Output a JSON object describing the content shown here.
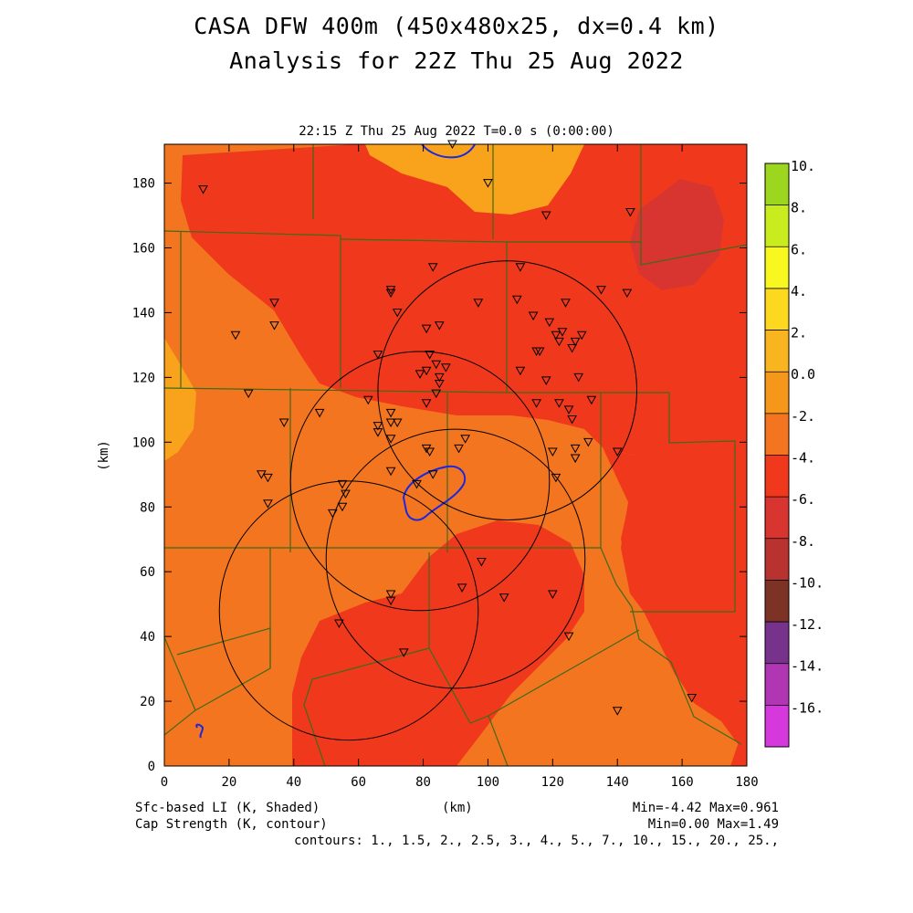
{
  "title_line1": "CASA DFW 400m (450x480x25, dx=0.4 km)",
  "title_line2": "Analysis for 22Z Thu 25 Aug 2022",
  "plot_subtitle": "22:15 Z Thu 25 Aug 2022    T=0.0 s (0:00:00)",
  "footer": {
    "field1": "Sfc-based LI (K, Shaded)",
    "field2": "Cap Strength (K, contour)",
    "xunits": "(km)",
    "minmax1": "Min=-4.42 Max=0.961",
    "minmax2": "Min=0.00 Max=1.49",
    "contours": "contours: 1., 1.5, 2., 2.5, 3., 4., 5., 7., 10., 15., 20., 25.,"
  },
  "chart_data": {
    "type": "heatmap",
    "xlabel": "(km)",
    "ylabel": "(km)",
    "xlim": [
      0,
      180
    ],
    "ylim": [
      0,
      192
    ],
    "xticks": [
      "0",
      "20",
      "40",
      "60",
      "80",
      "100",
      "120",
      "140",
      "160",
      "180"
    ],
    "yticks": [
      "0",
      "20",
      "40",
      "60",
      "80",
      "100",
      "120",
      "140",
      "160",
      "180"
    ],
    "colorbar": {
      "labels": [
        "10.",
        "8.",
        "6.",
        "4.",
        "2.",
        "0.0",
        "-2.",
        "-4.",
        "-6.",
        "-8.",
        "-10.",
        "-12.",
        "-14.",
        "-16."
      ],
      "colors": [
        "#9cd61e",
        "#c8ec1e",
        "#f8f820",
        "#fcd91e",
        "#f9b520",
        "#f5971a",
        "#f4751f",
        "#f0391c",
        "#d93530",
        "#b8322f",
        "#7d3226",
        "#77338c",
        "#b036b4",
        "#d538dc"
      ]
    },
    "radar_rings": [
      {
        "cx": 57,
        "cy": 48,
        "r": 40
      },
      {
        "cx": 79,
        "cy": 88,
        "r": 40
      },
      {
        "cx": 90,
        "cy": 64,
        "r": 40
      },
      {
        "cx": 106,
        "cy": 116,
        "r": 40
      }
    ],
    "stations": [
      [
        89,
        192
      ],
      [
        100,
        180
      ],
      [
        12,
        178
      ],
      [
        118,
        170
      ],
      [
        144,
        171
      ],
      [
        83,
        154
      ],
      [
        110,
        154
      ],
      [
        34,
        143
      ],
      [
        70,
        147
      ],
      [
        70,
        146
      ],
      [
        97,
        143
      ],
      [
        109,
        144
      ],
      [
        124,
        143
      ],
      [
        135,
        147
      ],
      [
        143,
        146
      ],
      [
        22,
        133
      ],
      [
        34,
        136
      ],
      [
        72,
        140
      ],
      [
        81,
        135
      ],
      [
        85,
        136
      ],
      [
        114,
        139
      ],
      [
        119,
        137
      ],
      [
        121,
        133
      ],
      [
        122,
        131
      ],
      [
        123,
        134
      ],
      [
        127,
        131
      ],
      [
        129,
        133
      ],
      [
        115,
        128
      ],
      [
        116,
        128
      ],
      [
        126,
        129
      ],
      [
        66,
        127
      ],
      [
        82,
        127
      ],
      [
        84,
        124
      ],
      [
        87,
        123
      ],
      [
        79,
        121
      ],
      [
        81,
        122
      ],
      [
        85,
        120
      ],
      [
        85,
        118
      ],
      [
        110,
        122
      ],
      [
        118,
        119
      ],
      [
        128,
        120
      ],
      [
        26,
        115
      ],
      [
        63,
        113
      ],
      [
        81,
        112
      ],
      [
        84,
        115
      ],
      [
        115,
        112
      ],
      [
        122,
        112
      ],
      [
        125,
        110
      ],
      [
        126,
        107
      ],
      [
        132,
        113
      ],
      [
        48,
        109
      ],
      [
        70,
        109
      ],
      [
        37,
        106
      ],
      [
        66,
        105
      ],
      [
        70,
        106
      ],
      [
        72,
        106
      ],
      [
        66,
        103
      ],
      [
        70,
        101
      ],
      [
        127,
        98
      ],
      [
        131,
        100
      ],
      [
        93,
        101
      ],
      [
        81,
        98
      ],
      [
        82,
        97
      ],
      [
        91,
        98
      ],
      [
        120,
        97
      ],
      [
        140,
        97
      ],
      [
        127,
        95
      ],
      [
        30,
        90
      ],
      [
        32,
        89
      ],
      [
        70,
        91
      ],
      [
        83,
        90
      ],
      [
        121,
        89
      ],
      [
        55,
        87
      ],
      [
        78,
        87
      ],
      [
        56,
        84
      ],
      [
        32,
        81
      ],
      [
        55,
        80
      ],
      [
        52,
        78
      ],
      [
        98,
        63
      ],
      [
        92,
        55
      ],
      [
        70,
        53
      ],
      [
        70,
        51
      ],
      [
        105,
        52
      ],
      [
        120,
        53
      ],
      [
        54,
        44
      ],
      [
        125,
        40
      ],
      [
        74,
        35
      ],
      [
        140,
        17
      ],
      [
        163,
        21
      ]
    ],
    "cap_contour_value": 1.0
  }
}
